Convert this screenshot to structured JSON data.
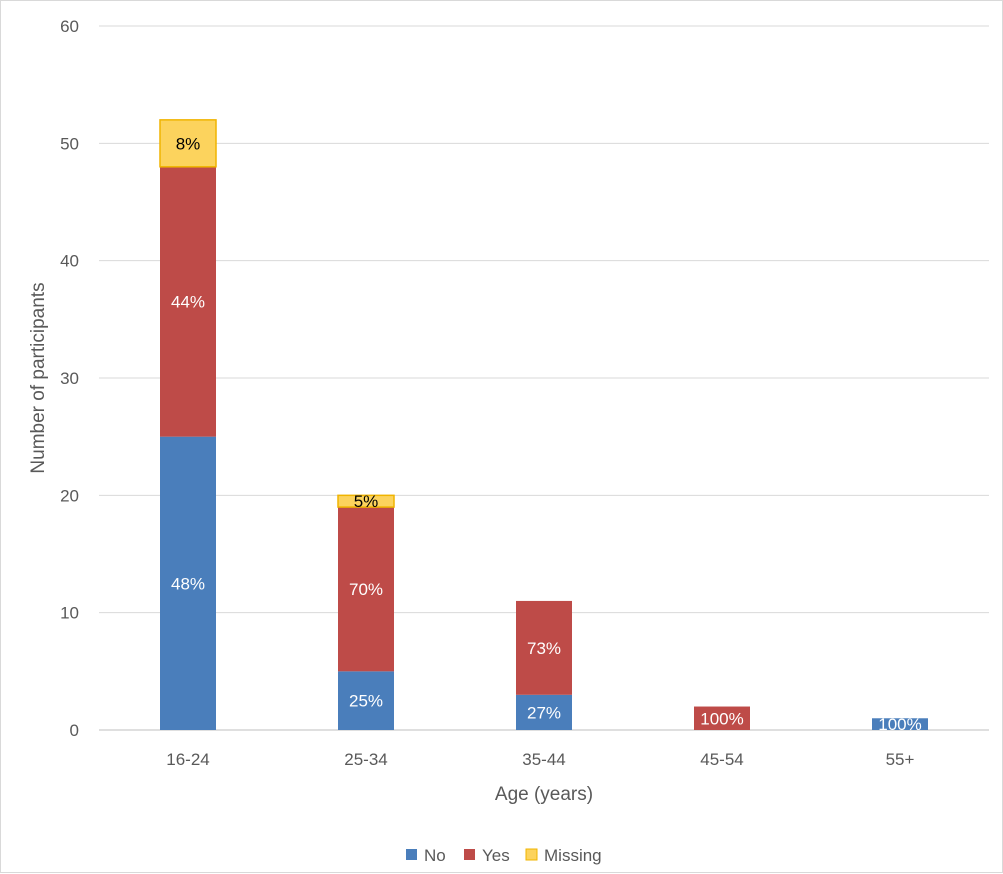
{
  "chart_data": {
    "type": "bar",
    "stacked": true,
    "title": "",
    "xlabel": "Age (years)",
    "ylabel": "Number of participants",
    "ylim": [
      0,
      60
    ],
    "yticks": [
      0,
      10,
      20,
      30,
      40,
      50,
      60
    ],
    "grid": true,
    "legend_position": "bottom",
    "categories": [
      "16-24",
      "25-34",
      "35-44",
      "45-54",
      "55+"
    ],
    "series": [
      {
        "name": "No",
        "color": "#4a7ebb",
        "label_color": "#ffffff",
        "values": [
          25,
          5,
          3,
          0,
          1
        ],
        "labels": [
          "48%",
          "25%",
          "27%",
          "",
          "100%"
        ]
      },
      {
        "name": "Yes",
        "color": "#be4b48",
        "label_color": "#ffffff",
        "values": [
          23,
          14,
          8,
          2,
          0
        ],
        "labels": [
          "44%",
          "70%",
          "73%",
          "100%",
          ""
        ]
      },
      {
        "name": "Missing",
        "color": "#fcd35d",
        "border": "#f0b400",
        "label_color": "#000000",
        "values": [
          4,
          1,
          0,
          0,
          0
        ],
        "labels": [
          "8%",
          "5%",
          "",
          "",
          ""
        ]
      }
    ]
  }
}
